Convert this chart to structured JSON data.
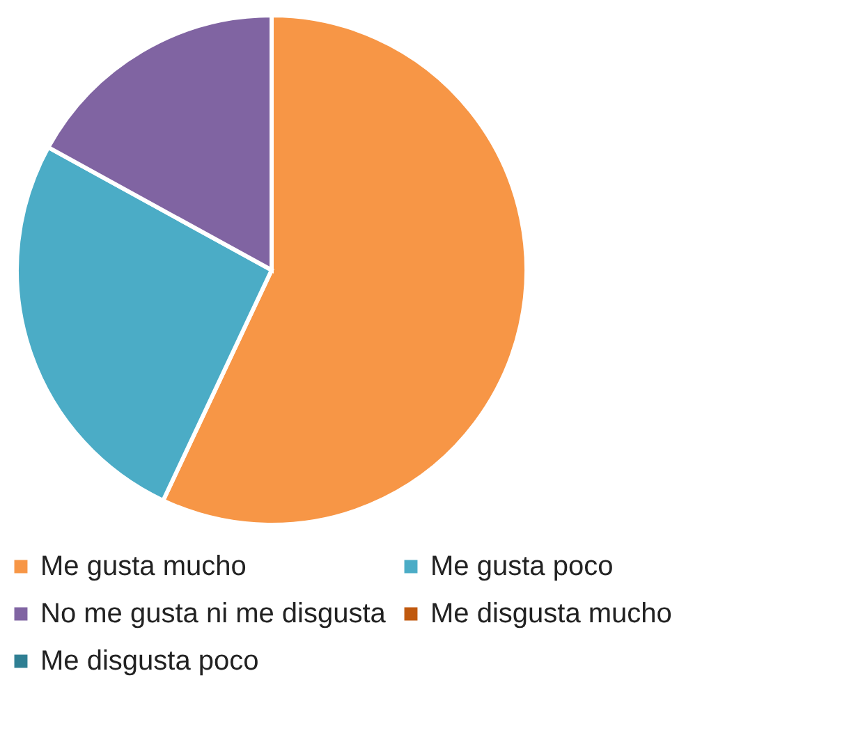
{
  "chart_data": {
    "type": "pie",
    "categories": [
      "Me gusta mucho",
      "Me gusta poco",
      "No me gusta ni me disgusta",
      "Me disgusta mucho",
      "Me disgusta poco"
    ],
    "values": [
      57,
      26,
      17,
      0,
      0
    ],
    "colors": [
      "#f79646",
      "#4bacc6",
      "#8064a2",
      "#c0590e",
      "#2f7f93"
    ],
    "legend": "bottom"
  }
}
